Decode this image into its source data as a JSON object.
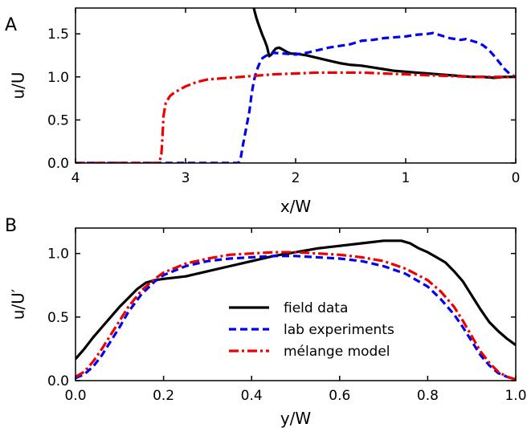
{
  "chart_data": [
    {
      "panel_label": "A",
      "type": "line",
      "xlabel": "x/W",
      "ylabel": "u/U",
      "xlim": [
        4,
        0
      ],
      "ylim": [
        0,
        1.8
      ],
      "x_ticks": [
        4,
        3,
        2,
        1,
        0
      ],
      "x_tick_labels": [
        "4",
        "3",
        "2",
        "1",
        "0"
      ],
      "y_ticks": [
        0,
        0.5,
        1.0,
        1.5
      ],
      "y_tick_labels": [
        "0.0",
        "0.5",
        "1.0",
        "1.5"
      ],
      "grid": false,
      "series": [
        {
          "key": "field",
          "style": "solid",
          "color": "#000000",
          "x": [
            2.38,
            2.36,
            2.34,
            2.32,
            2.3,
            2.28,
            2.26,
            2.24,
            2.22,
            2.2,
            2.18,
            2.15,
            2.12,
            2.08,
            2.04,
            2.0,
            1.9,
            1.8,
            1.7,
            1.6,
            1.5,
            1.4,
            1.3,
            1.2,
            1.1,
            1.0,
            0.9,
            0.8,
            0.7,
            0.6,
            0.5,
            0.4,
            0.3,
            0.2,
            0.1,
            0.0
          ],
          "y": [
            1.8,
            1.7,
            1.62,
            1.55,
            1.48,
            1.42,
            1.35,
            1.24,
            1.26,
            1.3,
            1.33,
            1.34,
            1.32,
            1.29,
            1.27,
            1.27,
            1.25,
            1.22,
            1.19,
            1.16,
            1.14,
            1.13,
            1.11,
            1.09,
            1.07,
            1.06,
            1.05,
            1.04,
            1.03,
            1.02,
            1.01,
            1.0,
            1.0,
            0.99,
            1.0,
            1.0
          ]
        },
        {
          "key": "lab",
          "style": "dashed",
          "color": "#0000ee",
          "x": [
            4.0,
            2.6,
            2.52,
            2.5,
            2.48,
            2.45,
            2.42,
            2.4,
            2.38,
            2.36,
            2.34,
            2.32,
            2.3,
            2.25,
            2.2,
            2.1,
            2.0,
            1.9,
            1.8,
            1.7,
            1.6,
            1.5,
            1.4,
            1.3,
            1.2,
            1.1,
            1.0,
            0.9,
            0.8,
            0.75,
            0.7,
            0.6,
            0.5,
            0.45,
            0.4,
            0.35,
            0.3,
            0.25,
            0.2,
            0.15,
            0.1,
            0.05,
            0.0
          ],
          "y": [
            0.0,
            0.0,
            0.0,
            0.05,
            0.2,
            0.4,
            0.6,
            0.8,
            0.95,
            1.05,
            1.12,
            1.18,
            1.22,
            1.26,
            1.28,
            1.27,
            1.26,
            1.28,
            1.31,
            1.34,
            1.36,
            1.38,
            1.42,
            1.43,
            1.45,
            1.46,
            1.47,
            1.49,
            1.5,
            1.51,
            1.49,
            1.45,
            1.43,
            1.44,
            1.42,
            1.4,
            1.37,
            1.32,
            1.25,
            1.17,
            1.09,
            1.03,
            1.0
          ]
        },
        {
          "key": "melange",
          "style": "dashdot",
          "color": "#ee0000",
          "x": [
            4.0,
            3.3,
            3.24,
            3.22,
            3.21,
            3.2,
            3.18,
            3.16,
            3.14,
            3.1,
            3.0,
            2.9,
            2.8,
            2.6,
            2.4,
            2.2,
            2.0,
            1.8,
            1.6,
            1.4,
            1.2,
            1.0,
            0.8,
            0.6,
            0.4,
            0.2,
            0.0
          ],
          "y": [
            0.0,
            0.0,
            0.0,
            0.1,
            0.3,
            0.55,
            0.7,
            0.74,
            0.78,
            0.82,
            0.89,
            0.94,
            0.97,
            0.99,
            1.01,
            1.03,
            1.04,
            1.05,
            1.05,
            1.05,
            1.04,
            1.03,
            1.02,
            1.01,
            1.0,
            1.0,
            1.0
          ]
        }
      ]
    },
    {
      "panel_label": "B",
      "type": "line",
      "xlabel": "y/W",
      "ylabel": "u/U′",
      "xlim": [
        0,
        1
      ],
      "ylim": [
        0,
        1.2
      ],
      "x_ticks": [
        0,
        0.2,
        0.4,
        0.6,
        0.8,
        1.0
      ],
      "x_tick_labels": [
        "0.0",
        "0.2",
        "0.4",
        "0.6",
        "0.8",
        "1.0"
      ],
      "y_ticks": [
        0,
        0.5,
        1.0
      ],
      "y_tick_labels": [
        "0.0",
        "0.5",
        "1.0"
      ],
      "grid": false,
      "legend": {
        "placement": "lower-center",
        "entries": [
          {
            "key": "field",
            "label": "field data"
          },
          {
            "key": "lab",
            "label": "lab experiments"
          },
          {
            "key": "melange",
            "label": "mélange model"
          }
        ]
      },
      "series": [
        {
          "key": "field",
          "name": "field data",
          "style": "solid",
          "color": "#000000",
          "x": [
            0.0,
            0.02,
            0.04,
            0.06,
            0.08,
            0.1,
            0.12,
            0.14,
            0.16,
            0.18,
            0.2,
            0.25,
            0.3,
            0.35,
            0.4,
            0.45,
            0.5,
            0.55,
            0.6,
            0.65,
            0.7,
            0.74,
            0.76,
            0.78,
            0.8,
            0.82,
            0.84,
            0.86,
            0.88,
            0.9,
            0.92,
            0.94,
            0.96,
            0.98,
            1.0
          ],
          "y": [
            0.17,
            0.25,
            0.34,
            0.42,
            0.5,
            0.58,
            0.65,
            0.72,
            0.77,
            0.79,
            0.8,
            0.82,
            0.86,
            0.9,
            0.94,
            0.98,
            1.01,
            1.04,
            1.06,
            1.08,
            1.1,
            1.1,
            1.08,
            1.04,
            1.01,
            0.97,
            0.93,
            0.86,
            0.78,
            0.67,
            0.56,
            0.46,
            0.39,
            0.33,
            0.28
          ]
        },
        {
          "key": "lab",
          "name": "lab experiments",
          "style": "dashed",
          "color": "#0000ee",
          "x": [
            0.0,
            0.02,
            0.04,
            0.06,
            0.08,
            0.1,
            0.12,
            0.15,
            0.18,
            0.2,
            0.25,
            0.3,
            0.35,
            0.4,
            0.45,
            0.5,
            0.55,
            0.6,
            0.65,
            0.7,
            0.75,
            0.8,
            0.83,
            0.86,
            0.88,
            0.9,
            0.92,
            0.94,
            0.96,
            0.98,
            1.0
          ],
          "y": [
            0.02,
            0.05,
            0.11,
            0.2,
            0.31,
            0.42,
            0.54,
            0.68,
            0.78,
            0.83,
            0.9,
            0.94,
            0.96,
            0.97,
            0.98,
            0.98,
            0.97,
            0.96,
            0.94,
            0.9,
            0.84,
            0.74,
            0.64,
            0.52,
            0.42,
            0.31,
            0.2,
            0.12,
            0.06,
            0.03,
            0.01
          ]
        },
        {
          "key": "melange",
          "name": "mélange model",
          "style": "dashdot",
          "color": "#ee0000",
          "x": [
            0.0,
            0.02,
            0.04,
            0.06,
            0.08,
            0.1,
            0.12,
            0.15,
            0.18,
            0.2,
            0.25,
            0.3,
            0.35,
            0.4,
            0.45,
            0.5,
            0.55,
            0.6,
            0.65,
            0.7,
            0.75,
            0.8,
            0.83,
            0.86,
            0.88,
            0.9,
            0.92,
            0.94,
            0.96,
            0.98,
            1.0
          ],
          "y": [
            0.03,
            0.07,
            0.15,
            0.25,
            0.36,
            0.47,
            0.58,
            0.71,
            0.8,
            0.85,
            0.92,
            0.96,
            0.99,
            1.0,
            1.01,
            1.01,
            1.0,
            0.99,
            0.97,
            0.94,
            0.88,
            0.79,
            0.7,
            0.58,
            0.47,
            0.35,
            0.23,
            0.14,
            0.07,
            0.03,
            0.01
          ]
        }
      ]
    }
  ]
}
